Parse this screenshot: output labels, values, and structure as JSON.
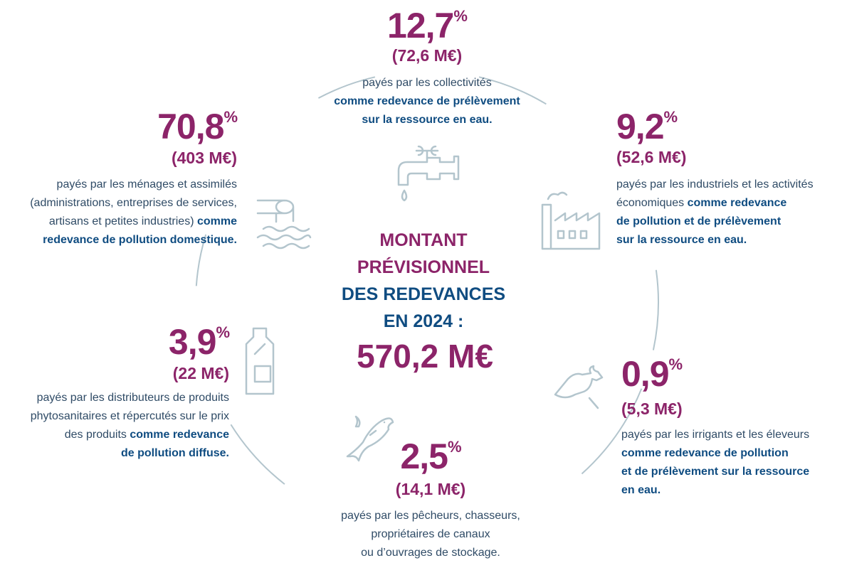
{
  "center": {
    "lines": [
      "MONTANT",
      "PRÉVISIONNEL",
      "DES REDEVANCES",
      "EN 2024 :"
    ],
    "total": "570,2 M€"
  },
  "items": [
    {
      "percent": "12,7",
      "percent_sign": "%",
      "amount": "(72,6 M€)",
      "lines": [
        [
          {
            "text": "payés par les collectivités",
            "bold": false
          }
        ],
        [
          {
            "text": "comme redevance de prélèvement",
            "bold": true
          }
        ],
        [
          {
            "text": "sur la ressource en eau.",
            "bold": true
          }
        ]
      ]
    },
    {
      "percent": "70,8",
      "percent_sign": "%",
      "amount": "(403 M€)",
      "lines": [
        [
          {
            "text": "payés par les ménages et assimilés",
            "bold": false
          }
        ],
        [
          {
            "text": "(administrations, entreprises de services,",
            "bold": false
          }
        ],
        [
          {
            "text": "artisans et petites industries) ",
            "bold": false
          },
          {
            "text": "comme",
            "bold": true
          }
        ],
        [
          {
            "text": "redevance de pollution domestique.",
            "bold": true
          }
        ]
      ]
    },
    {
      "percent": "9,2",
      "percent_sign": "%",
      "amount": "(52,6 M€)",
      "lines": [
        [
          {
            "text": "payés par les industriels et les activités",
            "bold": false
          }
        ],
        [
          {
            "text": "économiques ",
            "bold": false
          },
          {
            "text": "comme redevance",
            "bold": true
          }
        ],
        [
          {
            "text": "de pollution et de prélèvement",
            "bold": true
          }
        ],
        [
          {
            "text": "sur la ressource en eau.",
            "bold": true
          }
        ]
      ]
    },
    {
      "percent": "3,9",
      "percent_sign": "%",
      "amount": "(22 M€)",
      "lines": [
        [
          {
            "text": "payés par les distributeurs de produits",
            "bold": false
          }
        ],
        [
          {
            "text": "phytosanitaires et répercutés sur le prix",
            "bold": false
          }
        ],
        [
          {
            "text": "des produits ",
            "bold": false
          },
          {
            "text": "comme redevance",
            "bold": true
          }
        ],
        [
          {
            "text": "de pollution diffuse.",
            "bold": true
          }
        ]
      ]
    },
    {
      "percent": "0,9",
      "percent_sign": "%",
      "amount": "(5,3 M€)",
      "lines": [
        [
          {
            "text": "payés par les irrigants et les éleveurs",
            "bold": false
          }
        ],
        [
          {
            "text": "comme redevance de pollution",
            "bold": true
          }
        ],
        [
          {
            "text": "et de prélèvement sur la ressource",
            "bold": true
          }
        ],
        [
          {
            "text": "en eau.",
            "bold": true
          }
        ]
      ]
    },
    {
      "percent": "2,5",
      "percent_sign": "%",
      "amount": "(14,1 M€)",
      "lines": [
        [
          {
            "text": "payés par les pêcheurs, chasseurs,",
            "bold": false
          }
        ],
        [
          {
            "text": "propriétaires de canaux",
            "bold": false
          }
        ],
        [
          {
            "text": "ou d’ouvrages de stockage.",
            "bold": false
          }
        ]
      ]
    }
  ]
}
